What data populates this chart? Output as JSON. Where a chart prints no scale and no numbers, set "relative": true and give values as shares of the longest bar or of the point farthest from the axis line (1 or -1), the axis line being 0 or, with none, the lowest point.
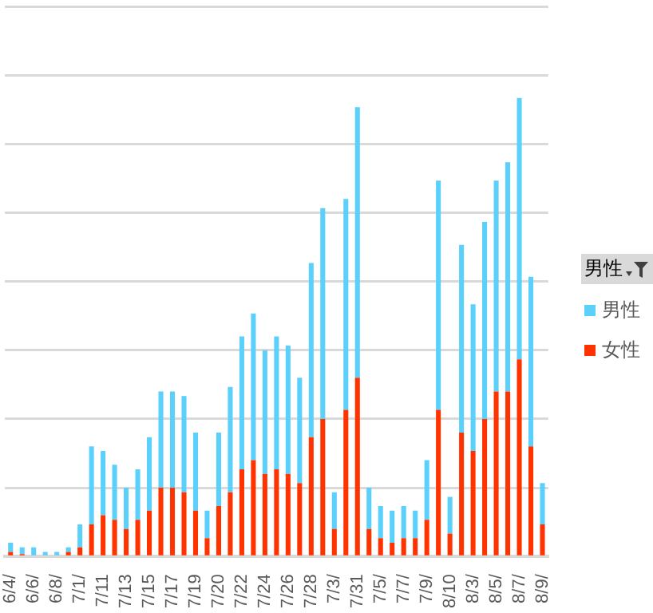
{
  "chart_data": {
    "type": "bar",
    "stacked": true,
    "relative": true,
    "grid": "y",
    "legend": "right",
    "legend_title": "男性",
    "categories": [
      "6/4/",
      null,
      "6/6/",
      null,
      "6/8/",
      null,
      "7/1/",
      null,
      "7/11",
      null,
      "7/13",
      null,
      "7/15",
      null,
      "7/17",
      null,
      "7/19",
      null,
      "7/20",
      null,
      "7/22",
      null,
      "7/24",
      null,
      "7/26",
      null,
      "7/28",
      null,
      "7/3/",
      null,
      "7/31",
      null,
      "7/5/",
      null,
      "7/7/",
      null,
      "7/9/",
      null,
      "8/10",
      null,
      "8/3/",
      null,
      "8/5/",
      null,
      "8/7/",
      null,
      "8/9/"
    ],
    "series": [
      {
        "name": "女性",
        "color": "#ff3300",
        "values": [
          0.01,
          0.005,
          0,
          0,
          0,
          0.01,
          0.02,
          0.07,
          0.09,
          0.08,
          0.06,
          0.08,
          0.1,
          0.15,
          0.15,
          0.14,
          0.1,
          0.04,
          0.11,
          0.14,
          0.19,
          0.21,
          0.18,
          0.19,
          0.18,
          0.16,
          0.26,
          0.3,
          0.06,
          0.32,
          0.39,
          0.06,
          0.04,
          0.03,
          0.04,
          0.04,
          0.08,
          0.32,
          0.05,
          0.27,
          0.23,
          0.3,
          0.36,
          0.36,
          0.43,
          0.24,
          0.07
        ]
      },
      {
        "name": "男性",
        "color": "#5bd0fb",
        "values": [
          0.02,
          0.015,
          0.02,
          0.01,
          0.01,
          0.01,
          0.05,
          0.17,
          0.14,
          0.12,
          0.09,
          0.11,
          0.16,
          0.21,
          0.21,
          0.21,
          0.17,
          0.06,
          0.16,
          0.23,
          0.29,
          0.32,
          0.27,
          0.29,
          0.28,
          0.23,
          0.38,
          0.46,
          0.08,
          0.46,
          0.59,
          0.09,
          0.07,
          0.07,
          0.07,
          0.06,
          0.13,
          0.5,
          0.08,
          0.41,
          0.32,
          0.43,
          0.46,
          0.5,
          0.57,
          0.37,
          0.09
        ]
      }
    ]
  }
}
